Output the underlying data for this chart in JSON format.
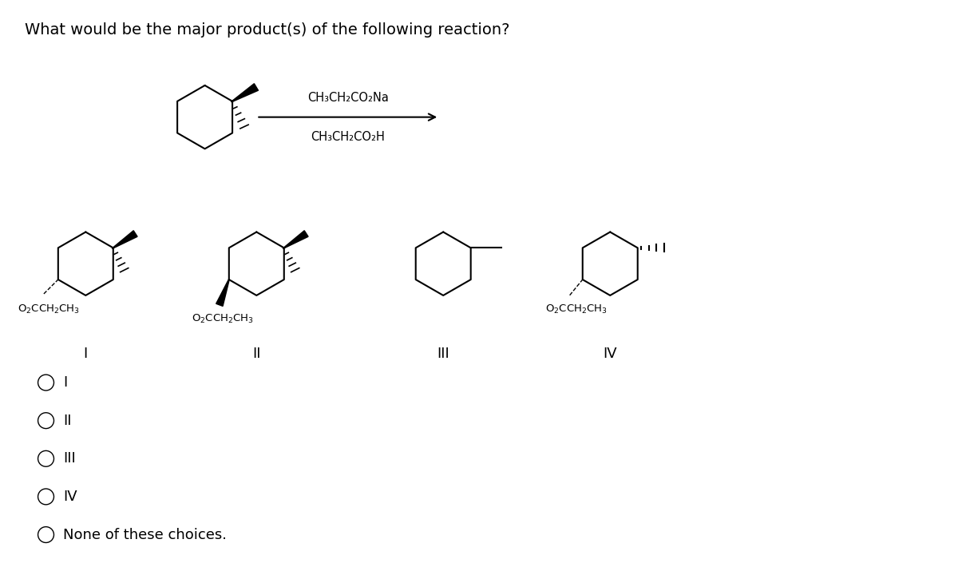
{
  "title": "What would be the major product(s) of the following reaction?",
  "reagent_line1": "CH₃CH₂CO₂Na",
  "reagent_line2": "CH₃CH₂CO₂H",
  "labels": [
    "I",
    "II",
    "III",
    "IV"
  ],
  "choices": [
    "I",
    "II",
    "III",
    "IV",
    "None of these choices."
  ],
  "bg_color": "#ffffff",
  "text_color": "#000000",
  "font_size_title": 14,
  "font_size_label": 13,
  "font_size_choice": 13,
  "font_size_chem": 11
}
